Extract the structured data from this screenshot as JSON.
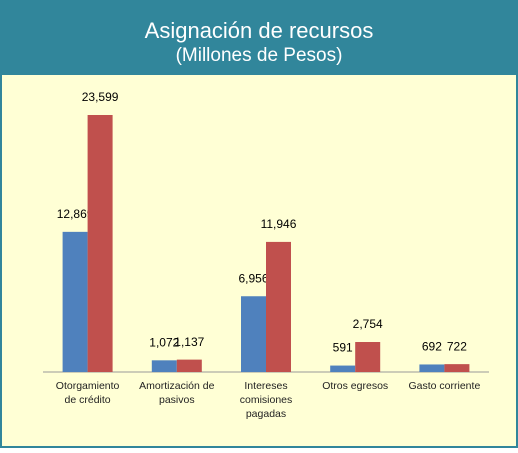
{
  "chart_data": {
    "type": "bar",
    "title": "Asignación de recursos",
    "subtitle": "(Millones de Pesos)",
    "categories": [
      [
        "Otorgamiento",
        "de crédito"
      ],
      [
        "Amortización  de",
        "pasivos"
      ],
      [
        "Intereses",
        "comisiones",
        "pagadas"
      ],
      [
        "Otros  egresos"
      ],
      [
        "Gasto corriente"
      ]
    ],
    "series": [
      {
        "color": "#4f81bd",
        "values": [
          12869,
          1072,
          6956,
          591,
          692
        ],
        "value_labels": [
          "12,869",
          "1,072",
          "6,956",
          "591",
          "692"
        ]
      },
      {
        "color": "#c0504d",
        "values": [
          23599,
          1137,
          11946,
          2754,
          722
        ],
        "value_labels": [
          "23,599",
          "1,137",
          "11,946",
          "2,754",
          "722"
        ]
      }
    ]
  }
}
